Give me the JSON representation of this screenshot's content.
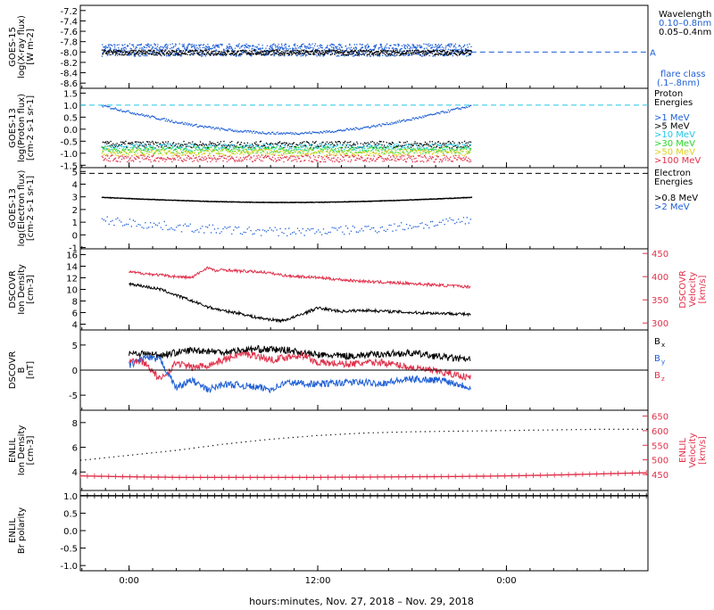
{
  "footer": {
    "xlabel": "hours:minutes, Nov. 27, 2018 – Nov. 29, 2018"
  },
  "time_ticks": [
    "0:00",
    "12:00",
    "0:00"
  ],
  "colors": {
    "black": "#000000",
    "blue": "#1e5fd6",
    "red": "#e0304a",
    "cyan": "#22c8e8",
    "green": "#2bd62b",
    "yellow": "#d8d020",
    "orange": "#e08020",
    "gray": "#808080"
  },
  "chart_data": [
    {
      "id": "xray",
      "type": "scatter",
      "ylabel": [
        "GOES-15",
        "log(X-ray flux)",
        "[W m-2]"
      ],
      "ylim": [
        -8.7,
        -7.1
      ],
      "ticks": [
        "-7.2",
        "-7.4",
        "-7.6",
        "-7.8",
        "-8.0",
        "-8.2",
        "-8.4",
        "-8.6"
      ],
      "tick_values": [
        -7.2,
        -7.4,
        -7.6,
        -7.8,
        -8.0,
        -8.2,
        -8.4,
        -8.6
      ],
      "legend_title": "Wavelength",
      "series": [
        {
          "name": "0.10–0.8nm",
          "color": "#1e5fd6",
          "level": -7.95,
          "spread": 0.12
        },
        {
          "name": "0.05–0.4nm",
          "color": "#000000",
          "level": -8.0,
          "spread": 0.05
        }
      ],
      "threshold": {
        "value": -8.0,
        "label": "A",
        "color": "#1e5fd6"
      },
      "flare_class_label": [
        "flare class",
        "(.1–.8nm)"
      ]
    },
    {
      "id": "proton",
      "type": "scatter",
      "ylabel": [
        "GOES-13",
        "log(Proton flux)",
        "[cm-2 s-1 sr-1]"
      ],
      "ylim": [
        -1.6,
        1.7
      ],
      "ticks": [
        "1.5",
        "1.0",
        "0.5",
        "0.0",
        "-0.5",
        "-1.0",
        "-1.5"
      ],
      "tick_values": [
        1.5,
        1.0,
        0.5,
        0.0,
        -0.5,
        -1.0,
        -1.5
      ],
      "legend_title": [
        "Proton",
        "Energies"
      ],
      "series": [
        {
          "name": ">1 MeV",
          "color": "#1e5fd6"
        },
        {
          "name": ">5 MeV",
          "color": "#000000"
        },
        {
          "name": ">10 MeV",
          "color": "#22c8e8"
        },
        {
          "name": ">30 MeV",
          "color": "#2bd62b"
        },
        {
          "name": ">50 MeV",
          "color": "#d8d020"
        },
        {
          "name": ">100 MeV",
          "color": "#e0304a"
        }
      ],
      "threshold": {
        "value": 1.0,
        "color": "#22c8e8"
      }
    },
    {
      "id": "electron",
      "type": "scatter",
      "ylabel": [
        "GOES-13",
        "log(Electron flux)",
        "[cm-2 s-1 sr-1]"
      ],
      "ylim": [
        -1.1,
        5.3
      ],
      "ticks": [
        "5",
        "4",
        "3",
        "2",
        "1",
        "0",
        "-1"
      ],
      "tick_values": [
        5,
        4,
        3,
        2,
        1,
        0,
        -1
      ],
      "legend_title": [
        "Electron",
        "Energies"
      ],
      "series": [
        {
          "name": ">0.8 MeV",
          "color": "#000000",
          "level_start": 3.0,
          "level_mid": 2.6,
          "level_end": 2.9
        },
        {
          "name": ">2 MeV",
          "color": "#1e5fd6",
          "level_start": 1.2,
          "level_mid": 0.3,
          "level_end": 1.1
        }
      ],
      "threshold": {
        "value": 4.85,
        "color": "#000000"
      }
    },
    {
      "id": "dscovr_plasma",
      "type": "line",
      "ylabel": [
        "DSCOVR",
        "Ion Density",
        "[cm-3]"
      ],
      "ylim": [
        3,
        17
      ],
      "ticks": [
        "16",
        "14",
        "12",
        "10",
        "8",
        "6",
        "4"
      ],
      "tick_values": [
        16,
        14,
        12,
        10,
        8,
        6,
        4
      ],
      "ylabel_right": [
        "DSCOVR",
        "Velocity",
        "[km/s]"
      ],
      "ylim_right": [
        285,
        460
      ],
      "ticks_right": [
        "450",
        "400",
        "350",
        "300"
      ],
      "tick_values_right": [
        450,
        400,
        350,
        300
      ],
      "series": [
        {
          "name": "Ion Density",
          "color": "#000000",
          "x_hours": [
            0,
            2,
            4,
            6,
            8,
            10,
            12,
            14,
            16,
            18,
            19.5,
            21,
            24,
            27,
            30,
            33,
            36,
            39,
            42,
            43.5
          ],
          "y": [
            11.0,
            10.5,
            10.0,
            9.0,
            8.0,
            7.0,
            6.3,
            5.9,
            5.2,
            4.8,
            4.6,
            5.2,
            6.8,
            6.2,
            6.4,
            6.2,
            6.0,
            5.9,
            5.8,
            5.6
          ]
        },
        {
          "name": "Velocity",
          "color": "#e0304a",
          "axis": "right",
          "x_hours": [
            0,
            3,
            6,
            8,
            10,
            11,
            12,
            14,
            17,
            20,
            24,
            28,
            32,
            36,
            40,
            43.5
          ],
          "y": [
            410,
            405,
            400,
            398,
            420,
            412,
            415,
            412,
            410,
            402,
            398,
            392,
            388,
            385,
            381,
            378
          ]
        }
      ]
    },
    {
      "id": "dscovr_mag",
      "type": "line",
      "ylabel": [
        "DSCOVR",
        "B",
        "[nT]"
      ],
      "ylim": [
        -8,
        8
      ],
      "ticks": [
        "5",
        "0",
        "-5"
      ],
      "tick_values": [
        5,
        0,
        -5
      ],
      "series": [
        {
          "name": "Bx",
          "label_main": "B",
          "label_sub": "x",
          "color": "#000000",
          "x_hours": [
            0,
            4,
            8,
            12,
            16,
            20,
            24,
            28,
            32,
            36,
            40,
            43.5
          ],
          "y": [
            3.5,
            3.0,
            4.0,
            3.6,
            4.2,
            4.0,
            3.0,
            2.8,
            3.2,
            3.4,
            2.6,
            2.0
          ]
        },
        {
          "name": "By",
          "label_main": "B",
          "label_sub": "y",
          "color": "#1e5fd6",
          "x_hours": [
            0,
            2,
            4,
            6,
            8,
            10,
            12,
            14,
            16,
            18,
            20,
            22,
            24,
            28,
            32,
            36,
            40,
            43.5
          ],
          "y": [
            1.0,
            2.5,
            2.0,
            -3.5,
            -2.0,
            -4.0,
            -2.8,
            -3.0,
            -3.4,
            -3.8,
            -2.5,
            -2.6,
            -2.8,
            -2.4,
            -2.6,
            -1.8,
            -2.0,
            -3.5
          ]
        },
        {
          "name": "Bz",
          "label_main": "B",
          "label_sub": "z",
          "color": "#e0304a",
          "x_hours": [
            0,
            2,
            4,
            6,
            8,
            10,
            12,
            14,
            16,
            18,
            20,
            22,
            24,
            28,
            32,
            36,
            40,
            43.5
          ],
          "y": [
            2.0,
            1.5,
            -2.0,
            1.5,
            0.5,
            1.0,
            2.0,
            3.2,
            3.0,
            2.0,
            2.6,
            3.0,
            1.5,
            1.2,
            1.6,
            0.5,
            -0.5,
            -1.5
          ]
        }
      ]
    },
    {
      "id": "enlil_plasma",
      "type": "line",
      "ylabel": [
        "ENLIL",
        "Ion Density",
        "[cm-3]"
      ],
      "ylim": [
        2.5,
        9.0
      ],
      "ticks": [
        "8",
        "6",
        "4"
      ],
      "tick_values": [
        8,
        6,
        4
      ],
      "ylabel_right": [
        "ENLIL",
        "Velocity",
        "[km/s]"
      ],
      "ylim_right": [
        395,
        670
      ],
      "ticks_right": [
        "650",
        "600",
        "550",
        "500",
        "450"
      ],
      "tick_values_right": [
        650,
        600,
        550,
        500,
        450
      ],
      "series": [
        {
          "name": "Ion Density",
          "color": "#000000",
          "x_hours": [
            -6,
            0,
            6,
            12,
            18,
            24,
            30,
            36,
            42,
            48,
            54,
            60,
            66
          ],
          "y": [
            5.0,
            5.4,
            5.8,
            6.3,
            6.7,
            7.0,
            7.2,
            7.3,
            7.35,
            7.4,
            7.45,
            7.5,
            7.5
          ]
        },
        {
          "name": "Velocity",
          "color": "#e0304a",
          "axis": "right",
          "x_hours": [
            -6,
            0,
            6,
            12,
            18,
            24,
            30,
            36,
            42,
            48,
            54,
            60,
            66
          ],
          "y": [
            445,
            442,
            440,
            440,
            440,
            440,
            441,
            442,
            443,
            445,
            448,
            452,
            456
          ]
        }
      ]
    },
    {
      "id": "enlil_polarity",
      "type": "line",
      "ylabel": [
        "ENLIL",
        "Br polarity"
      ],
      "ylim": [
        -1.15,
        1.15
      ],
      "ticks": [
        "1.0",
        "0.5",
        "0.0",
        "-0.5",
        "-1.0"
      ],
      "tick_values": [
        1.0,
        0.5,
        0.0,
        -0.5,
        -1.0
      ],
      "series": [
        {
          "name": "Br polarity",
          "color": "#000000",
          "x_hours": [
            -6,
            66
          ],
          "y": [
            1.0,
            1.0
          ]
        }
      ]
    }
  ]
}
